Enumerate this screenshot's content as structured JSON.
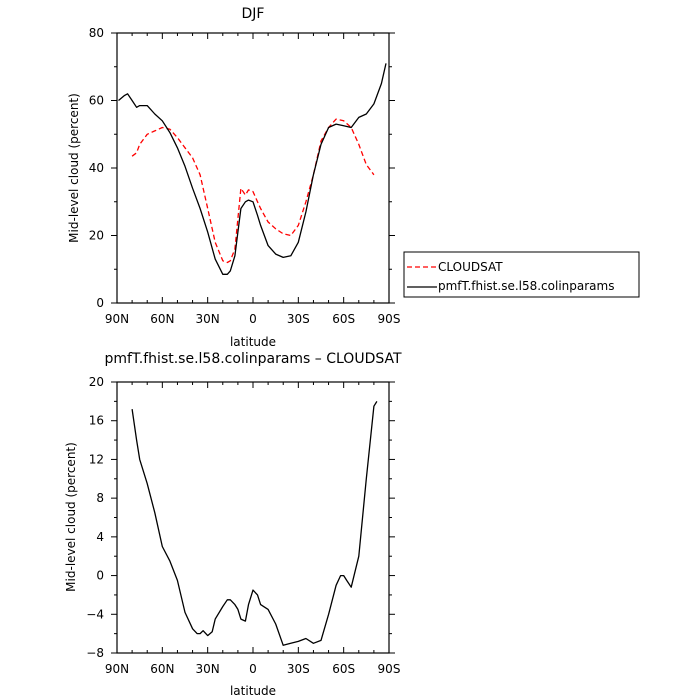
{
  "chart_data": [
    {
      "type": "line",
      "title": "DJF",
      "xlabel": "latitude",
      "ylabel": "Mid-level cloud (percent)",
      "x_domain": [
        90,
        -90
      ],
      "xticks": [
        90,
        60,
        30,
        0,
        -30,
        -60,
        -90
      ],
      "xtick_labels": [
        "90N",
        "60N",
        "30N",
        "0",
        "30S",
        "60S",
        "90S"
      ],
      "ylim": [
        0,
        80
      ],
      "yticks": [
        0,
        20,
        40,
        60,
        80
      ],
      "ytick_labels": [
        "0",
        "20",
        "40",
        "60",
        "80"
      ],
      "grid": false,
      "legend_position": "right, outside plot",
      "series": [
        {
          "name": "CLOUDSAT",
          "color": "#ff0000",
          "dash": "dashed",
          "x": [
            80,
            77,
            75,
            70,
            65,
            60,
            55,
            50,
            45,
            40,
            35,
            30,
            25,
            20,
            17,
            15,
            12,
            10,
            8,
            5,
            3,
            0,
            -3,
            -5,
            -10,
            -15,
            -20,
            -25,
            -30,
            -35,
            -40,
            -45,
            -50,
            -55,
            -60,
            -65,
            -70,
            -75,
            -80
          ],
          "y": [
            43.5,
            44.5,
            47,
            50,
            51,
            52,
            51.5,
            49,
            46,
            43,
            38,
            28,
            18,
            12.5,
            12,
            12.5,
            16,
            25,
            34,
            32,
            33.5,
            33,
            30,
            28,
            24,
            22,
            20.5,
            20,
            23,
            30,
            38,
            48,
            52,
            54.5,
            54,
            52,
            47,
            41,
            38
          ]
        },
        {
          "name": "pmfT.fhist.se.l58.colinparams",
          "color": "#000000",
          "dash": "solid",
          "x": [
            89,
            85,
            83,
            80,
            77,
            75,
            70,
            65,
            60,
            55,
            50,
            45,
            40,
            35,
            30,
            25,
            20,
            17,
            15,
            12,
            10,
            8,
            5,
            3,
            0,
            -3,
            -5,
            -10,
            -15,
            -20,
            -25,
            -30,
            -35,
            -40,
            -45,
            -50,
            -55,
            -60,
            -65,
            -70,
            -75,
            -80,
            -85,
            -88
          ],
          "y": [
            60,
            61.5,
            62,
            60,
            58,
            58.5,
            58.5,
            56,
            54,
            50.5,
            46,
            40.5,
            34,
            28,
            21,
            13,
            8.5,
            8.5,
            9.5,
            14,
            21,
            28,
            30,
            30.5,
            30,
            26,
            23,
            17,
            14.5,
            13.5,
            14,
            18,
            27,
            38,
            47,
            52,
            53,
            52.5,
            52,
            55,
            56,
            59,
            65,
            71
          ]
        }
      ]
    },
    {
      "type": "line",
      "title": "pmfT.fhist.se.l58.colinparams – CLOUDSAT",
      "xlabel": "latitude",
      "ylabel": "Mid-level cloud (percent)",
      "x_domain": [
        90,
        -90
      ],
      "xticks": [
        90,
        60,
        30,
        0,
        -30,
        -60,
        -90
      ],
      "xtick_labels": [
        "90N",
        "60N",
        "30N",
        "0",
        "30S",
        "60S",
        "90S"
      ],
      "ylim": [
        -8,
        20
      ],
      "yticks": [
        -8,
        -4,
        0,
        4,
        8,
        12,
        16,
        20
      ],
      "ytick_labels": [
        "−8",
        "−4",
        "0",
        "4",
        "8",
        "12",
        "16",
        "20"
      ],
      "grid": false,
      "series": [
        {
          "color": "#000000",
          "dash": "solid",
          "x": [
            80,
            77,
            75,
            70,
            65,
            60,
            55,
            50,
            45,
            40,
            37,
            35,
            33,
            30,
            27,
            25,
            20,
            17,
            15,
            12,
            10,
            8,
            5,
            3,
            0,
            -3,
            -5,
            -10,
            -15,
            -20,
            -25,
            -30,
            -35,
            -40,
            -45,
            -50,
            -55,
            -58,
            -60,
            -62,
            -65,
            -70,
            -75,
            -80,
            -82
          ],
          "y": [
            17.2,
            14,
            12,
            9.5,
            6.5,
            3,
            1.5,
            -0.5,
            -3.8,
            -5.5,
            -6,
            -6,
            -5.7,
            -6.2,
            -5.8,
            -4.5,
            -3.2,
            -2.5,
            -2.5,
            -3,
            -3.5,
            -4.5,
            -4.7,
            -3,
            -1.5,
            -2,
            -3,
            -3.5,
            -5,
            -7.2,
            -7,
            -6.8,
            -6.5,
            -7,
            -6.7,
            -4,
            -1,
            0,
            0,
            -0.5,
            -1.2,
            2,
            10,
            17.5,
            18
          ]
        }
      ]
    }
  ]
}
